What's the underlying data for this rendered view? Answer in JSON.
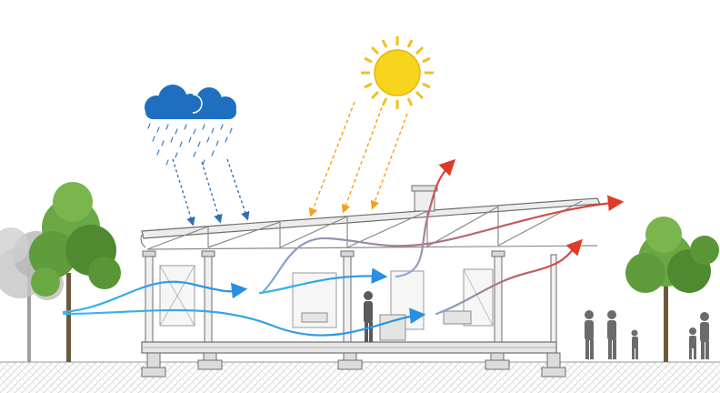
{
  "colors": {
    "background": "#ffffff",
    "rain_cloud": "#1e6fc0",
    "rain_drops": "#3a7fc4",
    "sun": "#f5d21a",
    "sun_rays": "#f0c020",
    "sunlight_arrows": "#f2a118",
    "airflow_cool": "#2aa8e6",
    "airflow_warm": "#e0392a",
    "structure": "#7a7a7a",
    "ground_hatch": "#bdbdbd",
    "tree_foliage": "#5f9c3b",
    "tree_foliage_faded": "#b6b6b6",
    "people": "#6b6b6b"
  },
  "icons": {
    "cloud": "rain-cloud-icon",
    "sun": "sun-icon",
    "person": "person-silhouette-icon",
    "tree": "tree-icon"
  }
}
